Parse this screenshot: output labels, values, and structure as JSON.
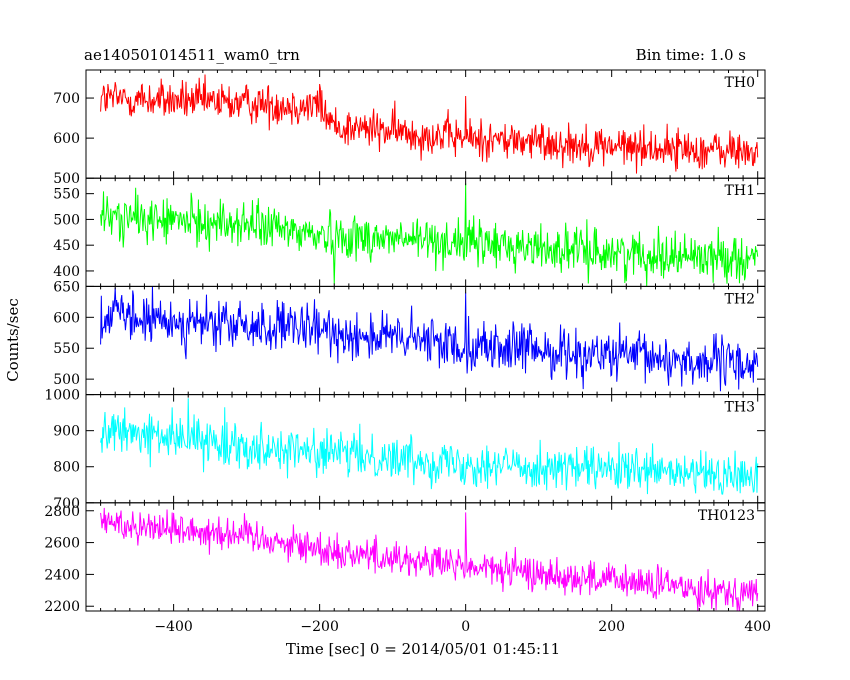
{
  "chart_data": {
    "type": "line",
    "title_left": "ae140501014511_wam0_trn",
    "title_right": "Bin time: 1.0 s",
    "xlabel": "Time [sec] 0 = 2014/05/01 01:45:11",
    "ylabel": "Counts/sec",
    "xlim": [
      -520,
      410
    ],
    "xticks": [
      -400,
      -200,
      0,
      200,
      400
    ],
    "x_start": -500,
    "x_end": 400,
    "x_step": 1,
    "panels": [
      {
        "label": "TH0",
        "color": "#ff0000",
        "ylim": [
          500,
          770
        ],
        "yticks": [
          500,
          600,
          700
        ],
        "trend": [
          [
            -500,
            700
          ],
          [
            -200,
            680
          ],
          [
            -180,
            630
          ],
          [
            0,
            600
          ],
          [
            200,
            580
          ],
          [
            400,
            565
          ]
        ],
        "noise": 25,
        "spikes": [
          [
            -200,
            735
          ],
          [
            0,
            705
          ]
        ]
      },
      {
        "label": "TH1",
        "color": "#00ff00",
        "ylim": [
          370,
          580
        ],
        "yticks": [
          400,
          450,
          500,
          550
        ],
        "trend": [
          [
            -500,
            505
          ],
          [
            -300,
            490
          ],
          [
            -200,
            470
          ],
          [
            0,
            455
          ],
          [
            200,
            435
          ],
          [
            400,
            425
          ]
        ],
        "noise": 22,
        "spikes": [
          [
            0,
            570
          ],
          [
            -180,
            375
          ]
        ]
      },
      {
        "label": "TH2",
        "color": "#0000ff",
        "ylim": [
          475,
          650
        ],
        "yticks": [
          500,
          550,
          600,
          650
        ],
        "trend": [
          [
            -500,
            600
          ],
          [
            -300,
            585
          ],
          [
            -200,
            578
          ],
          [
            0,
            555
          ],
          [
            200,
            538
          ],
          [
            400,
            522
          ]
        ],
        "noise": 20,
        "spikes": [
          [
            0,
            640
          ],
          [
            -480,
            648
          ]
        ]
      },
      {
        "label": "TH3",
        "color": "#00ffff",
        "ylim": [
          700,
          1000
        ],
        "yticks": [
          700,
          800,
          900,
          1000
        ],
        "trend": [
          [
            -500,
            900
          ],
          [
            -300,
            860
          ],
          [
            -200,
            840
          ],
          [
            0,
            810
          ],
          [
            200,
            790
          ],
          [
            400,
            770
          ]
        ],
        "noise": 30,
        "spikes": [
          [
            -330,
            965
          ],
          [
            -380,
            990
          ]
        ]
      },
      {
        "label": "TH0123",
        "color": "#ff00ff",
        "ylim": [
          2170,
          2850
        ],
        "yticks": [
          2200,
          2400,
          2600,
          2800
        ],
        "trend": [
          [
            -500,
            2730
          ],
          [
            -300,
            2650
          ],
          [
            -200,
            2560
          ],
          [
            0,
            2450
          ],
          [
            200,
            2360
          ],
          [
            400,
            2280
          ]
        ],
        "noise": 55,
        "spikes": [
          [
            0,
            2790
          ],
          [
            -170,
            2440
          ]
        ]
      }
    ]
  }
}
